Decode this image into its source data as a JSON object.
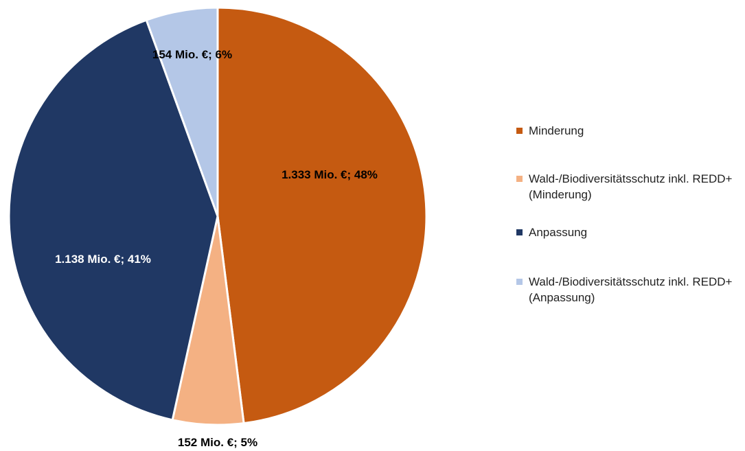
{
  "chart_data": {
    "type": "pie",
    "categories": [
      "Minderung",
      "Wald-/Biodiversitätsschutz inkl. REDD+ (Minderung)",
      "Anpassung",
      "Wald-/Biodiversitätsschutz inkl. REDD+ (Anpassung)"
    ],
    "values": [
      1333,
      152,
      1138,
      154
    ],
    "value_labels": [
      "1.333 Mio. €; 48%",
      "152 Mio. €; 5%",
      "1.138 Mio. €; 41%",
      "154 Mio. €; 6%"
    ],
    "colors": [
      "#c55a11",
      "#f4b183",
      "#203864",
      "#b4c7e7"
    ],
    "legend": "right"
  }
}
